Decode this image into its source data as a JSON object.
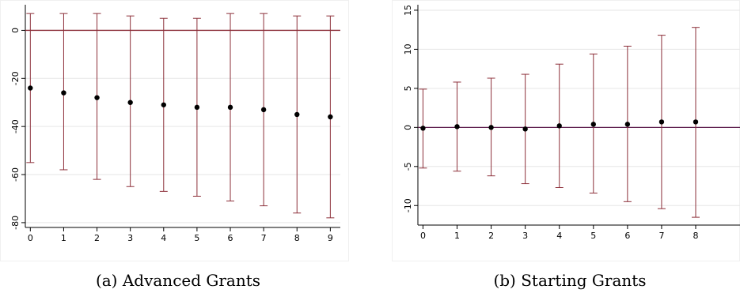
{
  "chart_data": [
    {
      "type": "scatter",
      "subtype": "errorbar",
      "caption": "(a) Advanced Grants",
      "x": [
        0,
        1,
        2,
        3,
        4,
        5,
        6,
        7,
        8,
        9
      ],
      "y": [
        -24,
        -26,
        -28,
        -30,
        -31,
        -32,
        -32,
        -33,
        -35,
        -36
      ],
      "lower": [
        -55,
        -58,
        -62,
        -65,
        -67,
        -69,
        -71,
        -73,
        -76,
        -78
      ],
      "upper": [
        7,
        7,
        7,
        6,
        5,
        5,
        7,
        7,
        6,
        6
      ],
      "xticks": [
        "0",
        "1",
        "2",
        "3",
        "4",
        "5",
        "6",
        "7",
        "8",
        "9"
      ],
      "yticks": [
        "0",
        "-20",
        "-40",
        "-60",
        "-80"
      ],
      "xlim": [
        -0.15,
        9.3
      ],
      "ylim": [
        -82,
        10
      ],
      "reference_line": 0,
      "grid": true,
      "colors": {
        "ci": "#8c2f39",
        "ref": "#8c2f39",
        "point": "#000000",
        "grid": "#e6e6e6"
      }
    },
    {
      "type": "scatter",
      "subtype": "errorbar",
      "caption": "(b) Starting Grants",
      "x": [
        0,
        1,
        2,
        3,
        4,
        5,
        6,
        7,
        8
      ],
      "y": [
        -0.1,
        0.1,
        0.0,
        -0.2,
        0.2,
        0.4,
        0.4,
        0.7,
        0.7
      ],
      "lower": [
        -5.2,
        -5.6,
        -6.2,
        -7.2,
        -7.7,
        -8.4,
        -9.5,
        -10.4,
        -11.5
      ],
      "upper": [
        4.9,
        5.8,
        6.3,
        6.8,
        8.1,
        9.4,
        10.4,
        11.8,
        12.8
      ],
      "xticks": [
        "0",
        "1",
        "2",
        "3",
        "4",
        "5",
        "6",
        "7",
        "8"
      ],
      "yticks": [
        "15",
        "10",
        "5",
        "0",
        "-5",
        "-10"
      ],
      "xlim": [
        -0.15,
        9.3
      ],
      "ylim": [
        -12.5,
        15.5
      ],
      "reference_line": 0,
      "grid": true,
      "colors": {
        "ci": "#8c2f39",
        "ref": "#5b1a4a",
        "point": "#000000",
        "grid": "#e6e6e6"
      }
    }
  ]
}
